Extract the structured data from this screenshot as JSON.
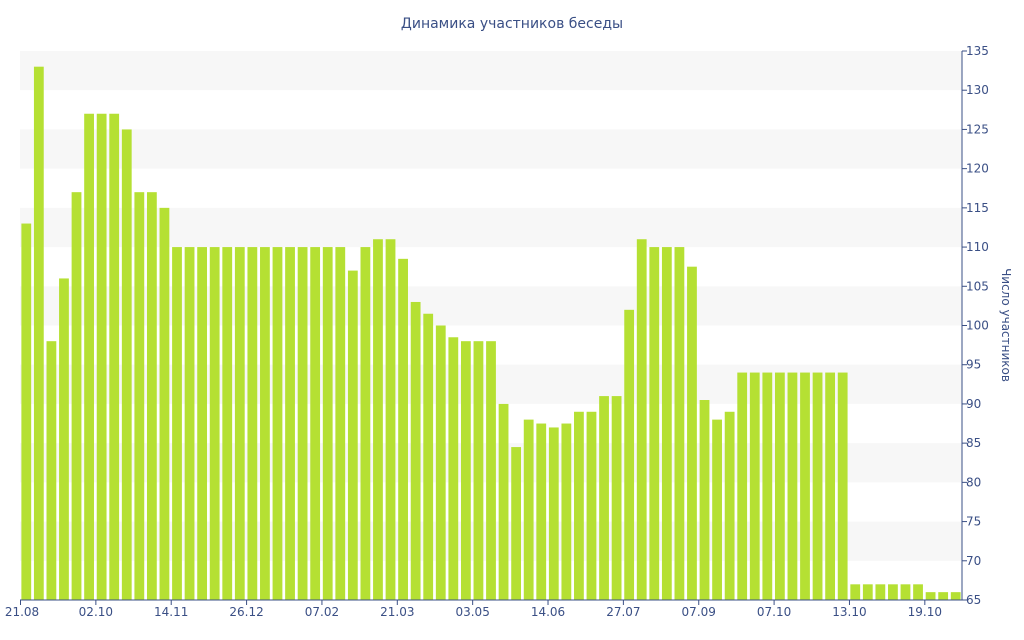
{
  "chart_data": {
    "type": "bar",
    "title": "Динамика участников беседы",
    "xlabel": "",
    "ylabel": "Число участников",
    "ylim": [
      65,
      135
    ],
    "y_ticks": [
      65,
      70,
      75,
      80,
      85,
      90,
      95,
      100,
      105,
      110,
      115,
      120,
      125,
      130,
      135
    ],
    "y_axis_side": "right",
    "grid": "alternating horizontal bands",
    "bar_color": "#b5e033",
    "band_color": "#f7f7f7",
    "axis_color": "#3a4f85",
    "x_tick_labels": [
      "21.08",
      "02.10",
      "14.11",
      "26.12",
      "07.02",
      "21.03",
      "03.05",
      "14.06",
      "27.07",
      "07.09",
      "07.10",
      "13.10",
      "19.10"
    ],
    "x_tick_positions": [
      0,
      6,
      12,
      18,
      24,
      30,
      36,
      42,
      48,
      54,
      60,
      66,
      72
    ],
    "values": [
      113,
      133,
      98,
      106,
      117,
      127,
      127,
      127,
      125,
      117,
      117,
      115,
      110,
      110,
      110,
      110,
      110,
      110,
      110,
      110,
      110,
      110,
      110,
      110,
      110,
      110,
      107,
      110,
      111,
      111,
      108.5,
      103,
      101.5,
      100,
      98.5,
      98,
      98,
      98,
      90,
      84.5,
      88,
      87.5,
      87,
      87.5,
      89,
      89,
      91,
      91,
      102,
      111,
      110,
      110,
      110,
      107.5,
      90.5,
      88,
      89,
      94,
      94,
      94,
      94,
      94,
      94,
      94,
      94,
      94,
      67,
      67,
      67,
      67,
      67,
      67,
      66,
      66,
      66
    ]
  }
}
